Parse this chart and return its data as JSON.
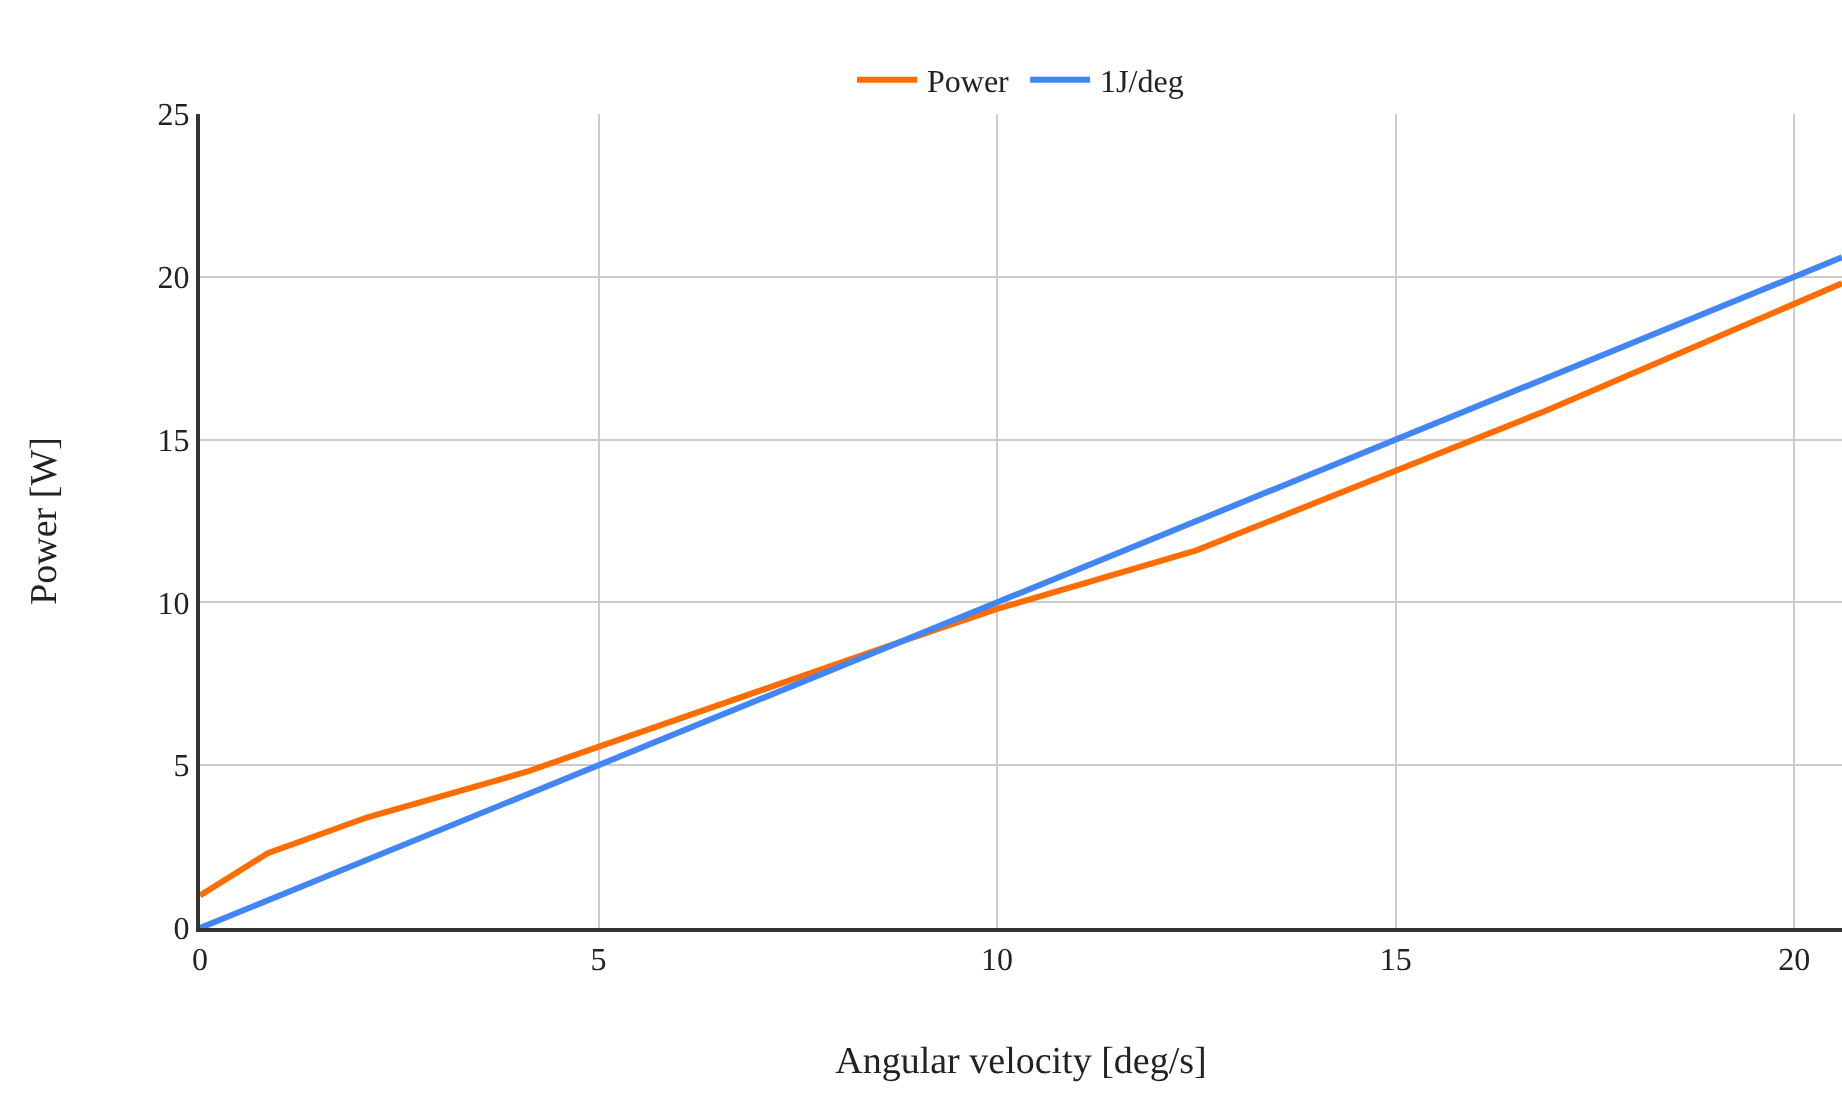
{
  "chart_data": {
    "type": "line",
    "xlabel": "Angular velocity [deg/s]",
    "ylabel": "Power [W]",
    "series": [
      {
        "name": "Power",
        "color": "#ff6d01",
        "x": [
          0,
          0.85,
          2.1,
          4.1,
          8.8,
          10,
          12.5,
          16.9,
          20.6
        ],
        "values": [
          1.0,
          2.3,
          3.4,
          4.8,
          8.8,
          9.8,
          11.6,
          15.9,
          19.8
        ]
      },
      {
        "name": "1J/deg",
        "color": "#4285f4",
        "x": [
          0,
          20.6
        ],
        "values": [
          0,
          20.6
        ]
      }
    ],
    "xlim": [
      0,
      20.6
    ],
    "xticks": [
      0,
      5,
      10,
      15,
      20
    ],
    "ylim": [
      0,
      25
    ],
    "yticks": [
      0,
      5,
      10,
      15,
      20,
      25
    ],
    "grid": true,
    "legend": "top",
    "marker": "none",
    "line_style": "solid"
  }
}
